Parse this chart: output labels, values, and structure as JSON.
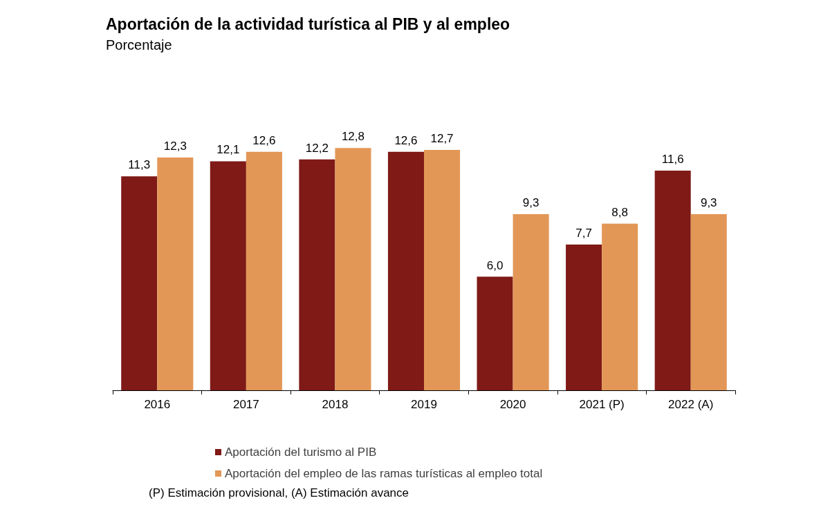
{
  "chart_data": {
    "type": "bar",
    "title": "Aportación de la actividad turística al PIB y al empleo",
    "subtitle": "Porcentaje",
    "categories": [
      "2016",
      "2017",
      "2018",
      "2019",
      "2020",
      "2021 (P)",
      "2022 (A)"
    ],
    "series": [
      {
        "name": "Aportación del turismo al PIB",
        "color": "#7f1a17",
        "values": [
          11.3,
          12.1,
          12.2,
          12.6,
          6.0,
          7.7,
          11.6
        ],
        "value_labels": [
          "11,3",
          "12,1",
          "12,2",
          "12,6",
          "6,0",
          "7,7",
          "11,6"
        ]
      },
      {
        "name": "Aportación del empleo de las ramas turísticas al empleo total",
        "color": "#e39757",
        "values": [
          12.3,
          12.6,
          12.8,
          12.7,
          9.3,
          8.8,
          9.3
        ],
        "value_labels": [
          "12,3",
          "12,6",
          "12,8",
          "12,7",
          "9,3",
          "8,8",
          "9,3"
        ]
      }
    ],
    "legend": "bottom",
    "annotations": [
      "(P) Estimación provisional, (A) Estimación avance"
    ]
  }
}
